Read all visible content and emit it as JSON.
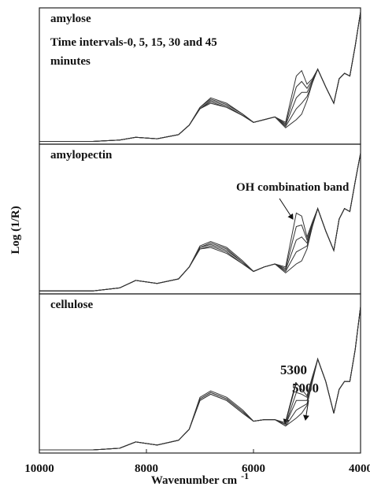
{
  "chart_data": [
    {
      "type": "line",
      "label": "amylose",
      "annotations": [
        "Time intervals-0, 5, 15, 30 and 45",
        "minutes"
      ],
      "xlim": [
        10000,
        4000
      ],
      "ylim": [
        0,
        1
      ],
      "color": "#333333",
      "x": [
        10000,
        9000,
        8500,
        8200,
        7800,
        7400,
        7200,
        7000,
        6800,
        6500,
        6200,
        6000,
        5800,
        5600,
        5400,
        5200,
        5100,
        5000,
        4900,
        4800,
        4650,
        4500,
        4400,
        4300,
        4200,
        4100,
        4000
      ],
      "series": [
        {
          "values": [
            0.02,
            0.02,
            0.03,
            0.05,
            0.04,
            0.07,
            0.14,
            0.26,
            0.3,
            0.27,
            0.21,
            0.16,
            0.18,
            0.2,
            0.12,
            0.18,
            0.22,
            0.32,
            0.45,
            0.55,
            0.42,
            0.3,
            0.48,
            0.52,
            0.5,
            0.72,
            0.97
          ]
        },
        {
          "values": [
            0.02,
            0.02,
            0.03,
            0.05,
            0.04,
            0.07,
            0.14,
            0.26,
            0.31,
            0.27,
            0.21,
            0.16,
            0.18,
            0.2,
            0.13,
            0.26,
            0.3,
            0.35,
            0.45,
            0.55,
            0.42,
            0.3,
            0.48,
            0.52,
            0.5,
            0.72,
            0.97
          ]
        },
        {
          "values": [
            0.02,
            0.02,
            0.03,
            0.05,
            0.04,
            0.07,
            0.14,
            0.26,
            0.32,
            0.28,
            0.21,
            0.16,
            0.18,
            0.2,
            0.14,
            0.34,
            0.38,
            0.38,
            0.46,
            0.55,
            0.42,
            0.3,
            0.48,
            0.52,
            0.5,
            0.72,
            0.97
          ]
        },
        {
          "values": [
            0.02,
            0.02,
            0.03,
            0.05,
            0.04,
            0.07,
            0.14,
            0.27,
            0.33,
            0.29,
            0.22,
            0.16,
            0.18,
            0.2,
            0.15,
            0.42,
            0.46,
            0.41,
            0.47,
            0.55,
            0.42,
            0.3,
            0.48,
            0.52,
            0.5,
            0.72,
            0.97
          ]
        },
        {
          "values": [
            0.02,
            0.02,
            0.03,
            0.05,
            0.04,
            0.07,
            0.14,
            0.27,
            0.34,
            0.3,
            0.22,
            0.16,
            0.18,
            0.2,
            0.16,
            0.5,
            0.54,
            0.44,
            0.48,
            0.55,
            0.42,
            0.3,
            0.48,
            0.52,
            0.5,
            0.72,
            0.97
          ]
        }
      ]
    },
    {
      "type": "line",
      "label": "amylopectin",
      "ylabel": "Log (1/R)",
      "annotations": [
        "OH combination band"
      ],
      "xlim": [
        10000,
        4000
      ],
      "ylim": [
        0,
        1
      ],
      "color": "#333333",
      "x": [
        10000,
        9000,
        8500,
        8200,
        7800,
        7400,
        7200,
        7000,
        6800,
        6500,
        6200,
        6000,
        5800,
        5600,
        5400,
        5200,
        5100,
        5000,
        4900,
        4800,
        4650,
        4500,
        4400,
        4300,
        4200,
        4100,
        4000
      ],
      "series": [
        {
          "values": [
            0.02,
            0.02,
            0.04,
            0.09,
            0.07,
            0.1,
            0.18,
            0.3,
            0.31,
            0.27,
            0.2,
            0.15,
            0.18,
            0.2,
            0.14,
            0.2,
            0.22,
            0.3,
            0.45,
            0.57,
            0.42,
            0.29,
            0.5,
            0.57,
            0.55,
            0.75,
            0.94
          ]
        },
        {
          "values": [
            0.02,
            0.02,
            0.04,
            0.09,
            0.07,
            0.1,
            0.18,
            0.3,
            0.32,
            0.28,
            0.2,
            0.15,
            0.18,
            0.2,
            0.15,
            0.28,
            0.3,
            0.32,
            0.45,
            0.57,
            0.42,
            0.29,
            0.5,
            0.57,
            0.55,
            0.75,
            0.94
          ]
        },
        {
          "values": [
            0.02,
            0.02,
            0.04,
            0.09,
            0.07,
            0.1,
            0.18,
            0.31,
            0.33,
            0.29,
            0.21,
            0.15,
            0.18,
            0.2,
            0.16,
            0.36,
            0.38,
            0.34,
            0.46,
            0.57,
            0.42,
            0.29,
            0.5,
            0.57,
            0.55,
            0.75,
            0.94
          ]
        },
        {
          "values": [
            0.02,
            0.02,
            0.04,
            0.09,
            0.07,
            0.1,
            0.18,
            0.31,
            0.34,
            0.3,
            0.21,
            0.15,
            0.18,
            0.2,
            0.17,
            0.45,
            0.46,
            0.36,
            0.47,
            0.57,
            0.42,
            0.29,
            0.5,
            0.57,
            0.55,
            0.75,
            0.94
          ]
        },
        {
          "values": [
            0.02,
            0.02,
            0.04,
            0.09,
            0.07,
            0.1,
            0.18,
            0.32,
            0.35,
            0.31,
            0.22,
            0.15,
            0.18,
            0.2,
            0.18,
            0.54,
            0.52,
            0.38,
            0.48,
            0.57,
            0.42,
            0.29,
            0.5,
            0.57,
            0.55,
            0.75,
            0.94
          ]
        }
      ]
    },
    {
      "type": "line",
      "label": "cellulose",
      "annotations": [
        "5300",
        "5000"
      ],
      "xlabel": "Wavenumber cm",
      "xlabel_sup": "-1",
      "xlim": [
        10000,
        4000
      ],
      "ylim": [
        0,
        1
      ],
      "xticks": [
        10000,
        8000,
        6000,
        4000
      ],
      "color": "#333333",
      "x": [
        10000,
        9000,
        8500,
        8200,
        7800,
        7400,
        7200,
        7000,
        6800,
        6500,
        6200,
        6000,
        5800,
        5600,
        5400,
        5200,
        5100,
        5000,
        4900,
        4800,
        4650,
        4500,
        4400,
        4300,
        4200,
        4100,
        4000
      ],
      "series": [
        {
          "values": [
            0.02,
            0.02,
            0.03,
            0.07,
            0.05,
            0.08,
            0.15,
            0.33,
            0.37,
            0.33,
            0.25,
            0.2,
            0.21,
            0.21,
            0.17,
            0.22,
            0.25,
            0.3,
            0.45,
            0.59,
            0.45,
            0.25,
            0.4,
            0.45,
            0.45,
            0.65,
            0.92
          ]
        },
        {
          "values": [
            0.02,
            0.02,
            0.03,
            0.07,
            0.05,
            0.08,
            0.15,
            0.33,
            0.37,
            0.33,
            0.25,
            0.2,
            0.21,
            0.21,
            0.17,
            0.27,
            0.29,
            0.31,
            0.45,
            0.59,
            0.45,
            0.25,
            0.4,
            0.45,
            0.45,
            0.65,
            0.92
          ]
        },
        {
          "values": [
            0.02,
            0.02,
            0.03,
            0.07,
            0.05,
            0.08,
            0.15,
            0.34,
            0.38,
            0.34,
            0.26,
            0.2,
            0.21,
            0.21,
            0.18,
            0.33,
            0.33,
            0.33,
            0.46,
            0.59,
            0.45,
            0.25,
            0.4,
            0.45,
            0.45,
            0.65,
            0.92
          ]
        },
        {
          "values": [
            0.02,
            0.02,
            0.03,
            0.07,
            0.05,
            0.08,
            0.15,
            0.34,
            0.38,
            0.34,
            0.26,
            0.2,
            0.21,
            0.21,
            0.18,
            0.38,
            0.37,
            0.35,
            0.47,
            0.59,
            0.45,
            0.25,
            0.4,
            0.45,
            0.45,
            0.65,
            0.92
          ]
        },
        {
          "values": [
            0.02,
            0.02,
            0.03,
            0.07,
            0.05,
            0.08,
            0.15,
            0.35,
            0.39,
            0.35,
            0.27,
            0.2,
            0.21,
            0.21,
            0.19,
            0.44,
            0.4,
            0.36,
            0.48,
            0.59,
            0.45,
            0.25,
            0.4,
            0.45,
            0.45,
            0.65,
            0.92
          ]
        }
      ]
    }
  ]
}
